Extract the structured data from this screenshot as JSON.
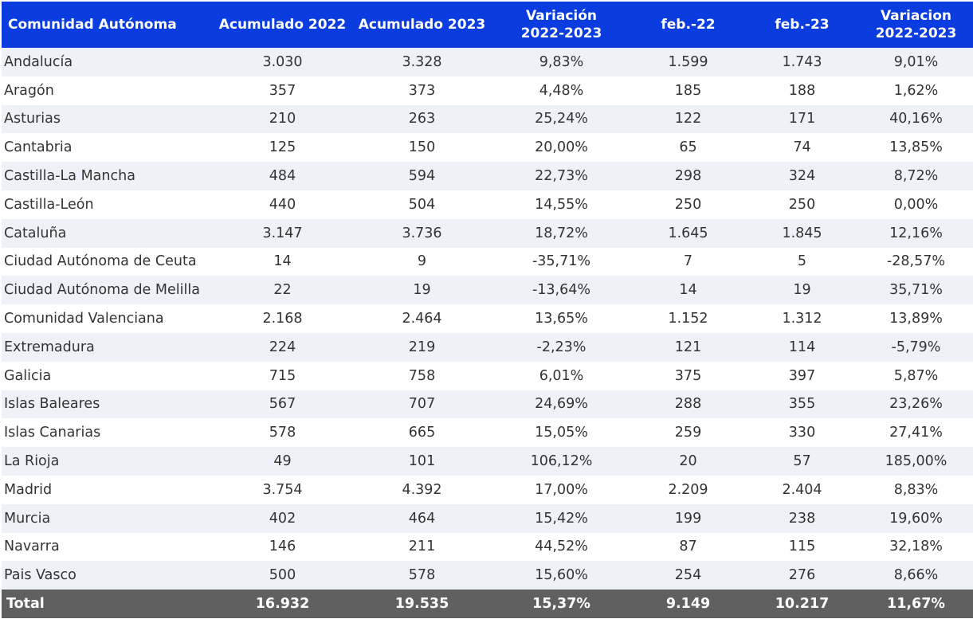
{
  "table": {
    "headers": [
      [
        "Comunidad Autónoma"
      ],
      [
        "Acumulado 2022"
      ],
      [
        "Acumulado 2023"
      ],
      [
        "Variación",
        "2022-2023"
      ],
      [
        "feb.-22"
      ],
      [
        "feb.-23"
      ],
      [
        "Variacion",
        "2022-2023"
      ]
    ],
    "rows": [
      [
        "Andalucía",
        "3.030",
        "3.328",
        "9,83%",
        "1.599",
        "1.743",
        "9,01%"
      ],
      [
        "Aragón",
        "357",
        "373",
        "4,48%",
        "185",
        "188",
        "1,62%"
      ],
      [
        "Asturias",
        "210",
        "263",
        "25,24%",
        "122",
        "171",
        "40,16%"
      ],
      [
        "Cantabria",
        "125",
        "150",
        "20,00%",
        "65",
        "74",
        "13,85%"
      ],
      [
        "Castilla-La Mancha",
        "484",
        "594",
        "22,73%",
        "298",
        "324",
        "8,72%"
      ],
      [
        "Castilla-León",
        "440",
        "504",
        "14,55%",
        "250",
        "250",
        "0,00%"
      ],
      [
        "Cataluña",
        "3.147",
        "3.736",
        "18,72%",
        "1.645",
        "1.845",
        "12,16%"
      ],
      [
        "Ciudad Autónoma de Ceuta",
        "14",
        "9",
        "-35,71%",
        "7",
        "5",
        "-28,57%"
      ],
      [
        "Ciudad Autónoma de Melilla",
        "22",
        "19",
        "-13,64%",
        "14",
        "19",
        "35,71%"
      ],
      [
        "Comunidad Valenciana",
        "2.168",
        "2.464",
        "13,65%",
        "1.152",
        "1.312",
        "13,89%"
      ],
      [
        "Extremadura",
        "224",
        "219",
        "-2,23%",
        "121",
        "114",
        "-5,79%"
      ],
      [
        "Galicia",
        "715",
        "758",
        "6,01%",
        "375",
        "397",
        "5,87%"
      ],
      [
        "Islas Baleares",
        "567",
        "707",
        "24,69%",
        "288",
        "355",
        "23,26%"
      ],
      [
        "Islas Canarias",
        "578",
        "665",
        "15,05%",
        "259",
        "330",
        "27,41%"
      ],
      [
        "La Rioja",
        "49",
        "101",
        "106,12%",
        "20",
        "57",
        "185,00%"
      ],
      [
        "Madrid",
        "3.754",
        "4.392",
        "17,00%",
        "2.209",
        "2.404",
        "8,83%"
      ],
      [
        "Murcia",
        "402",
        "464",
        "15,42%",
        "199",
        "238",
        "19,60%"
      ],
      [
        "Navarra",
        "146",
        "211",
        "44,52%",
        "87",
        "115",
        "32,18%"
      ],
      [
        "Pais Vasco",
        "500",
        "578",
        "15,60%",
        "254",
        "276",
        "8,66%"
      ]
    ],
    "total": [
      "Total",
      "16.932",
      "19.535",
      "15,37%",
      "9.149",
      "10.217",
      "11,67%"
    ]
  },
  "colors": {
    "header_bg": "#0a3ce0",
    "header_text": "#ffffff",
    "row_alt_bg": "#eef2f8",
    "total_bg": "#606060"
  }
}
